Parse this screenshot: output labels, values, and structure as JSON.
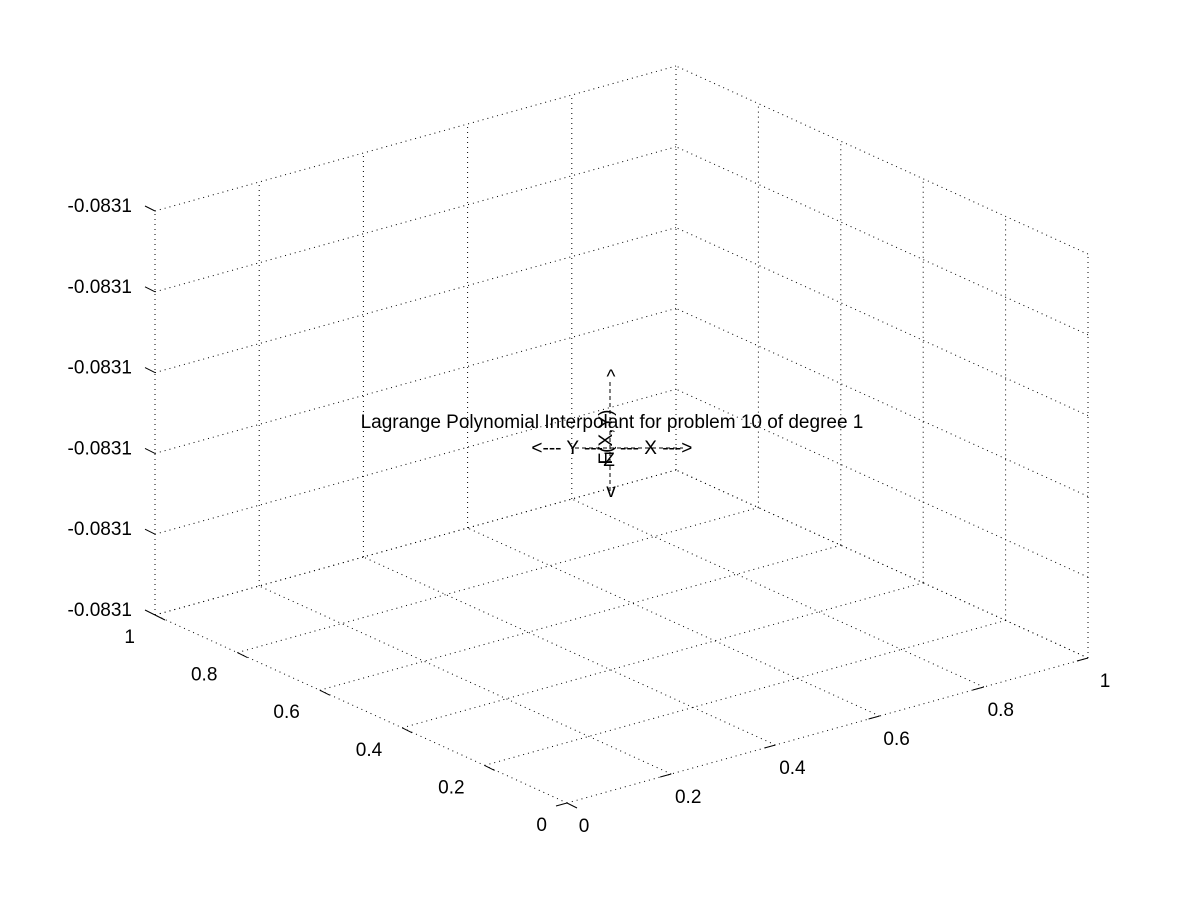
{
  "chart_data": {
    "type": "surface",
    "title": "Lagrange Polynomial Interpolant for problem 10 of degree 1",
    "xlabel": "",
    "ylabel": "",
    "zlabel": "",
    "xlim": [
      0,
      1
    ],
    "ylim": [
      0,
      1
    ],
    "x_ticks": [
      "0",
      "0.2",
      "0.4",
      "0.6",
      "0.8",
      "1"
    ],
    "y_ticks": [
      "0",
      "0.2",
      "0.4",
      "0.6",
      "0.8",
      "1"
    ],
    "z_ticks": [
      "-0.0831",
      "-0.0831",
      "-0.0831",
      "-0.0831",
      "-0.0831",
      "-0.0831"
    ],
    "grid": true,
    "series": [],
    "annotations": {
      "up_arrow": "^",
      "f_label": "F(X,Y)",
      "down_arrow": "v",
      "y_arrow": "<--- Y ---",
      "z_label": "Z",
      "x_arrow": "--- X --->"
    }
  }
}
